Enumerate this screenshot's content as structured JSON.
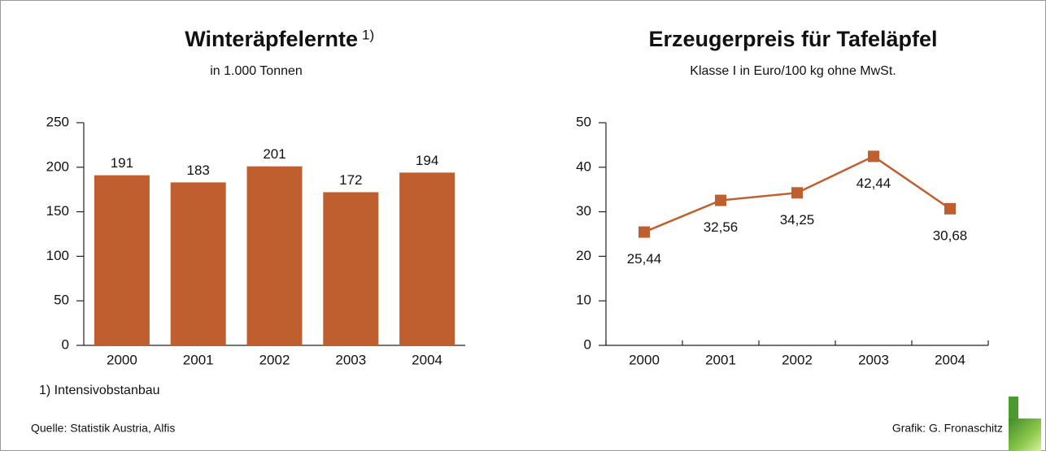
{
  "chart_data": [
    {
      "type": "bar",
      "title": "Winteräpfelernte",
      "title_note": "1)",
      "subtitle": "in 1.000 Tonnen",
      "categories": [
        "2000",
        "2001",
        "2002",
        "2003",
        "2004"
      ],
      "values": [
        191,
        183,
        201,
        172,
        194
      ],
      "color": "#bf5f30",
      "ylim": [
        0,
        250
      ],
      "yticks": [
        0,
        50,
        100,
        150,
        200,
        250
      ],
      "grid": false,
      "footnote": "1) Intensivobstanbau"
    },
    {
      "type": "line",
      "title": "Erzeugerpreis für Tafeläpfel",
      "subtitle": "Klasse I in Euro/100 kg ohne MwSt.",
      "categories": [
        "2000",
        "2001",
        "2002",
        "2003",
        "2004"
      ],
      "values": [
        25.44,
        32.56,
        34.25,
        42.44,
        30.68
      ],
      "value_labels": [
        "25,44",
        "32,56",
        "34,25",
        "42,44",
        "30,68"
      ],
      "color": "#bf5f30",
      "ylim": [
        0,
        50
      ],
      "yticks": [
        0,
        10,
        20,
        30,
        40,
        50
      ],
      "grid": false
    }
  ],
  "source": "Quelle: Statistik Austria, Alfis",
  "credit": "Grafik: G. Fronaschitz"
}
